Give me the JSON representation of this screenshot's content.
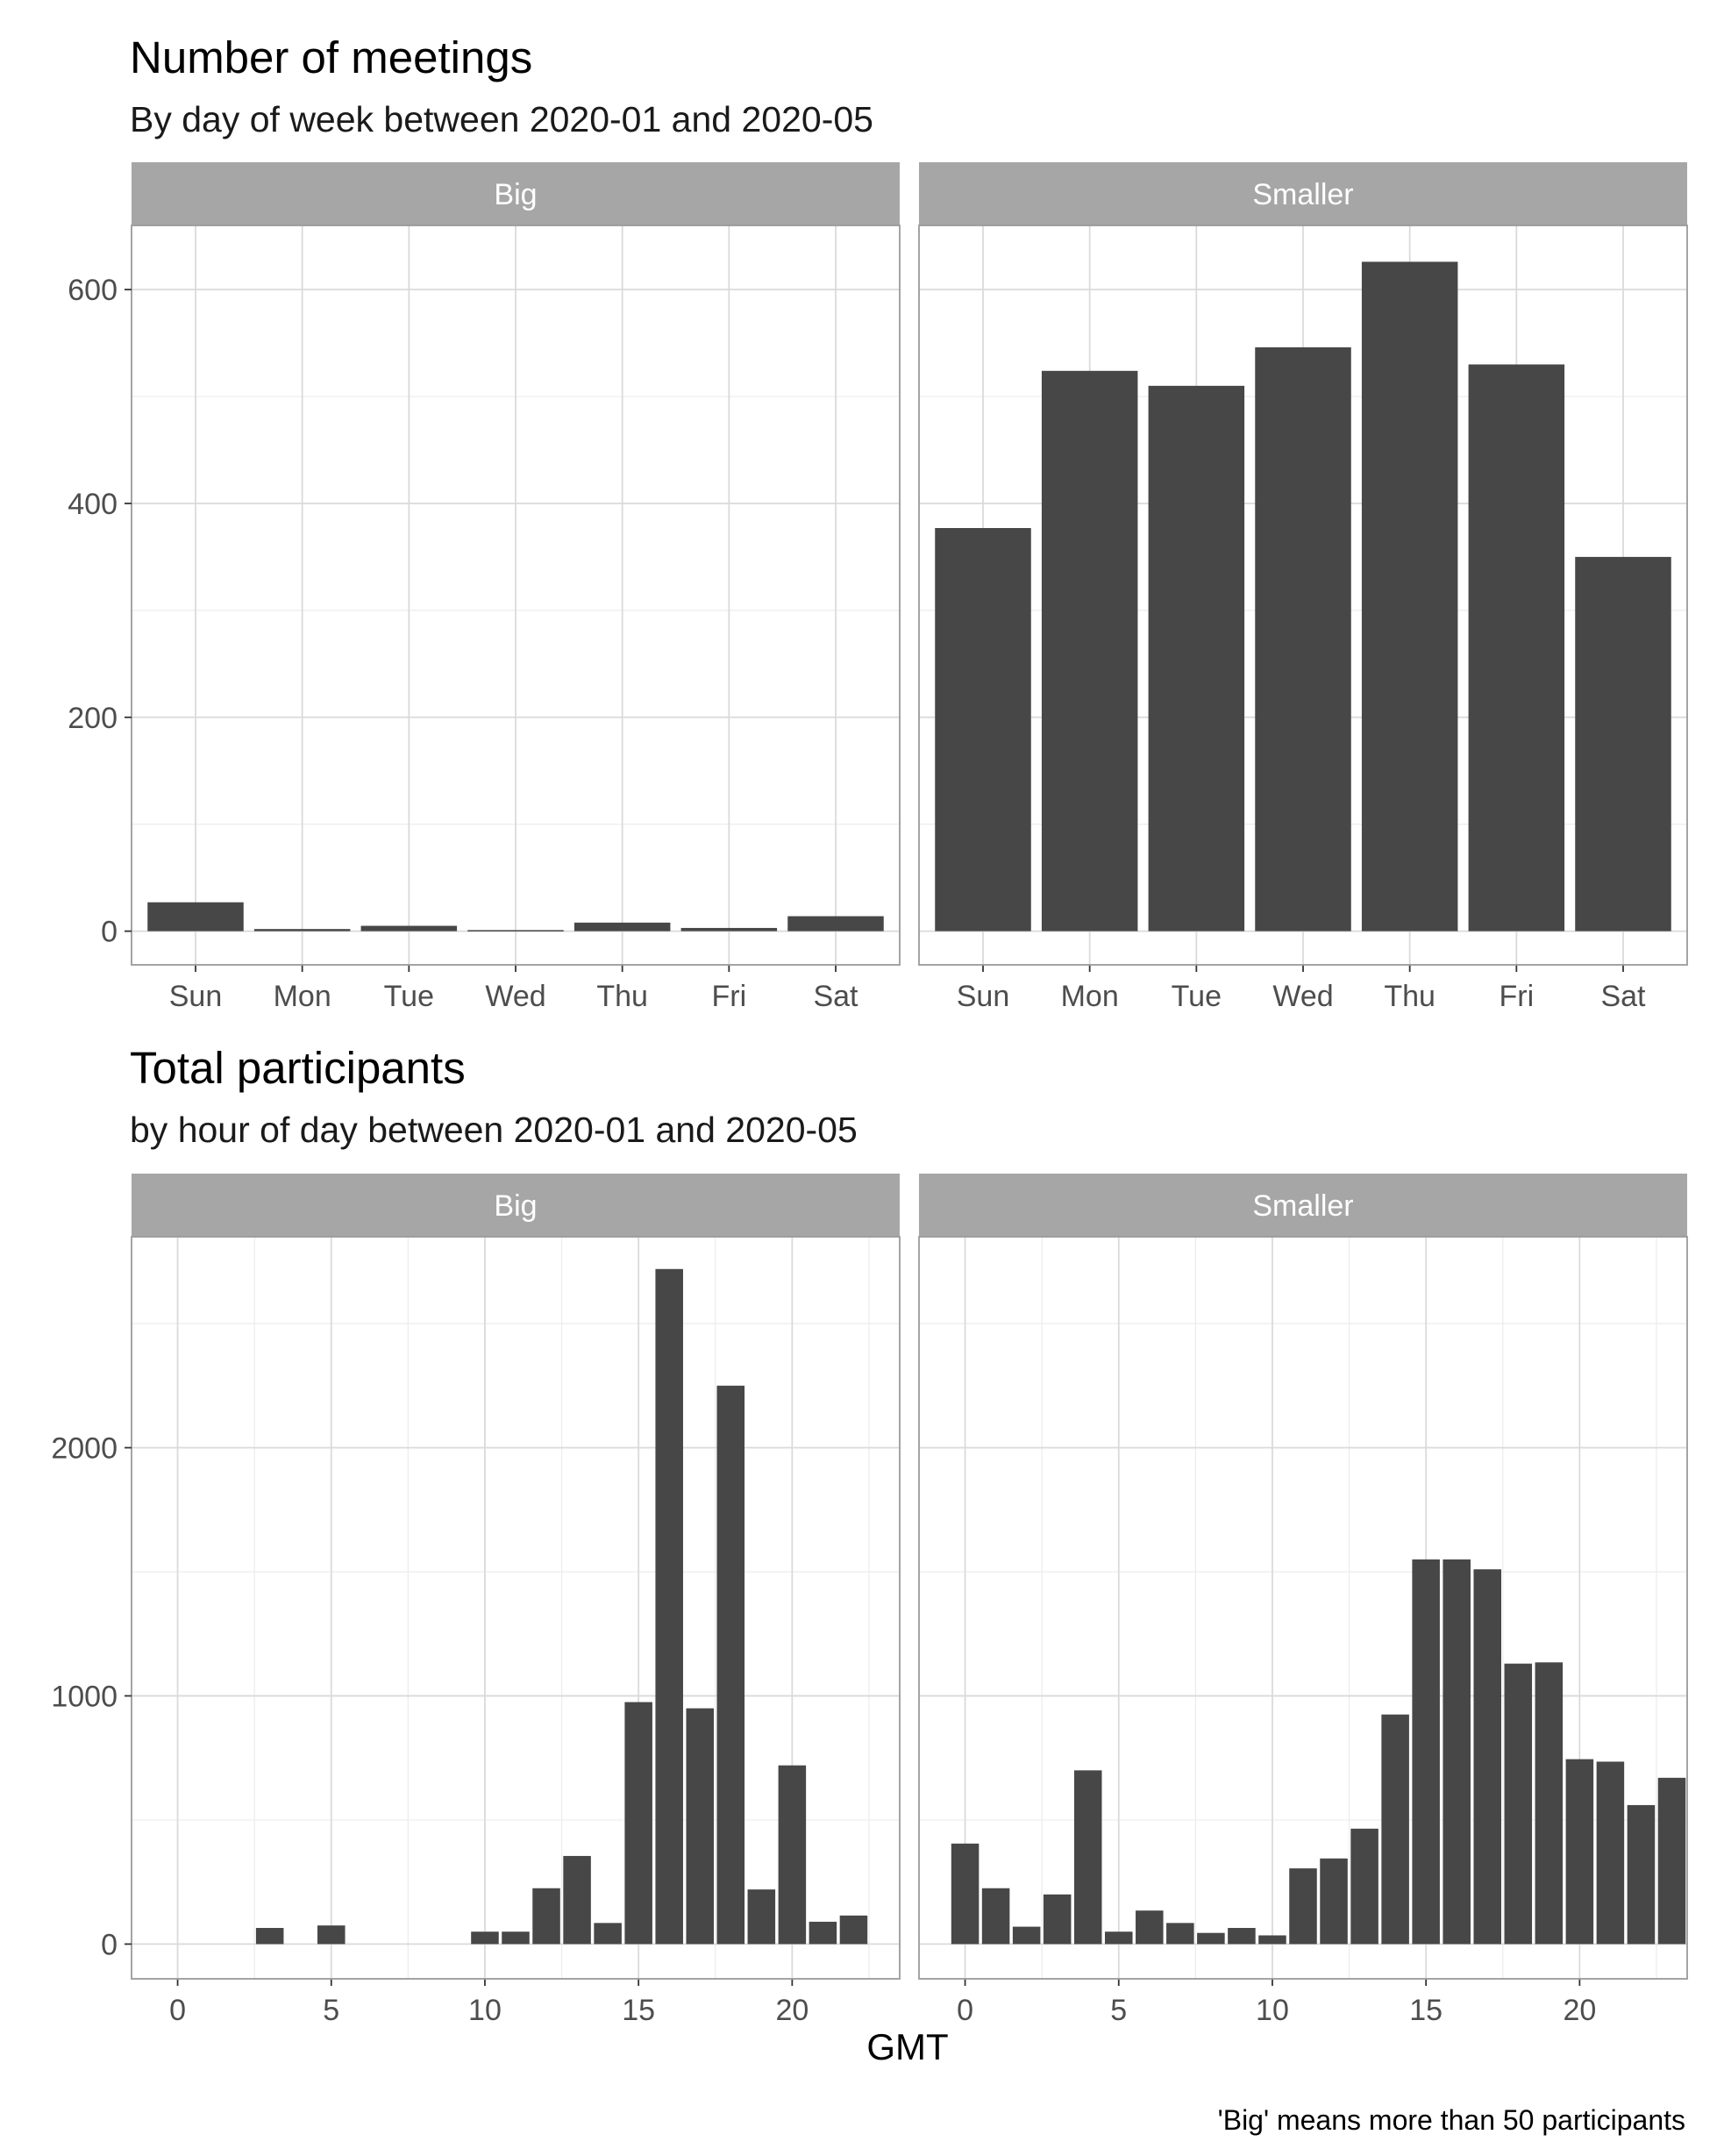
{
  "chart_data": [
    {
      "type": "bar",
      "title": "Number of meetings",
      "subtitle": "By day of week between 2020-01 and 2020-05",
      "xlabel": "",
      "ylabel": "",
      "categories": [
        "Sun",
        "Mon",
        "Tue",
        "Wed",
        "Thu",
        "Fri",
        "Sat"
      ],
      "facets": [
        "Big",
        "Smaller"
      ],
      "series": [
        {
          "name": "Big",
          "values": [
            27,
            2,
            5,
            1,
            8,
            3,
            14
          ]
        },
        {
          "name": "Smaller",
          "values": [
            377,
            524,
            510,
            546,
            626,
            530,
            350
          ]
        }
      ],
      "ylim": [
        -31.5,
        660
      ],
      "yticks": [
        0,
        200,
        400,
        600
      ],
      "grid": true,
      "bar_color": "#474747"
    },
    {
      "type": "bar",
      "title": "Total participants",
      "subtitle": "by hour of day between 2020-01 and 2020-05",
      "xlabel": "GMT",
      "ylabel": "",
      "facets": [
        "Big",
        "Smaller"
      ],
      "x": [
        0,
        1,
        2,
        3,
        4,
        5,
        6,
        7,
        8,
        9,
        10,
        11,
        12,
        13,
        14,
        15,
        16,
        17,
        18,
        19,
        20,
        21,
        22,
        23
      ],
      "series": [
        {
          "name": "Big",
          "values": [
            0,
            0,
            0,
            65,
            0,
            75,
            0,
            0,
            0,
            0,
            50,
            50,
            225,
            355,
            85,
            975,
            2720,
            950,
            2250,
            220,
            720,
            90,
            115,
            0
          ]
        },
        {
          "name": "Smaller",
          "values": [
            405,
            225,
            70,
            200,
            700,
            50,
            135,
            85,
            45,
            65,
            35,
            305,
            345,
            465,
            925,
            1550,
            1550,
            1510,
            1130,
            1135,
            745,
            735,
            560,
            670
          ]
        }
      ],
      "xlim": [
        -1.5,
        23.5
      ],
      "xticks": [
        0,
        5,
        10,
        15,
        20
      ],
      "ylim": [
        -140,
        2850
      ],
      "yticks": [
        0,
        1000,
        2000
      ],
      "grid": true,
      "bar_color": "#474747"
    }
  ],
  "caption": "'Big' means more than 50 participants"
}
